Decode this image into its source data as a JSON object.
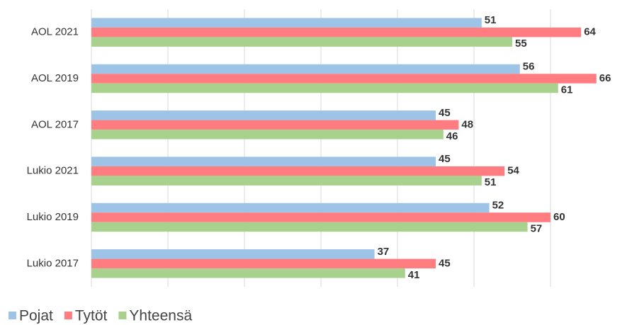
{
  "chart_data": {
    "type": "bar",
    "orientation": "horizontal",
    "categories": [
      "AOL 2021",
      "AOL 2019",
      "AOL 2017",
      "Lukio 2021",
      "Lukio 2019",
      "Lukio 2017"
    ],
    "series": [
      {
        "name": "Pojat",
        "color": "#9dc3e6",
        "values": [
          51,
          56,
          45,
          45,
          52,
          37
        ]
      },
      {
        "name": "Tytöt",
        "color": "#ff7c80",
        "values": [
          64,
          66,
          48,
          54,
          60,
          45
        ]
      },
      {
        "name": "Yhteensä",
        "color": "#a9d18e",
        "values": [
          55,
          61,
          46,
          51,
          57,
          41
        ]
      }
    ],
    "xlim": [
      0,
      70
    ],
    "xticks": [
      0,
      10,
      20,
      30,
      40,
      50,
      60
    ],
    "grid": true,
    "legend": "bottom"
  }
}
